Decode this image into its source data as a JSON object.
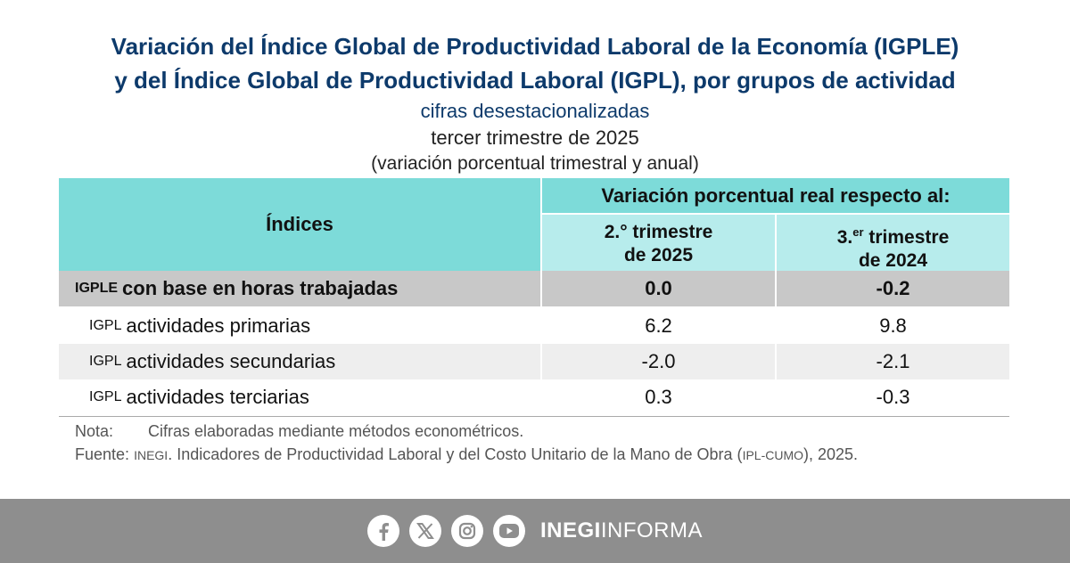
{
  "title": {
    "line1": "Variación del Índice Global de Productividad Laboral de la Economía (IGPLE)",
    "line2": "y del Índice Global de Productividad Laboral (IGPL), por grupos de actividad"
  },
  "subtitle": {
    "line1": "cifras desestacionalizadas",
    "line2": "tercer trimestre de 2025",
    "line3": "(variación porcentual trimestral y anual)"
  },
  "table": {
    "header_indices": "Índices",
    "header_group": "Variación porcentual real respecto al:",
    "col1": {
      "line1": "2.° trimestre",
      "line2": "de 2025"
    },
    "col2": {
      "prefix": "3.",
      "sup": "er",
      "suffix": " trimestre",
      "line2": "de 2024"
    },
    "rows": [
      {
        "abbr": "IGPLE",
        "label": "con base en horas trabajadas",
        "v1": "0.0",
        "v2": "-0.2"
      },
      {
        "abbr": "IGPL",
        "label": "actividades primarias",
        "v1": "6.2",
        "v2": "9.8"
      },
      {
        "abbr": "IGPL",
        "label": "actividades secundarias",
        "v1": "-2.0",
        "v2": "-2.1"
      },
      {
        "abbr": "IGPL",
        "label": "actividades terciarias",
        "v1": "0.3",
        "v2": "-0.3"
      }
    ]
  },
  "notes": {
    "nota_label": "Nota:",
    "nota_text": "Cifras elaboradas mediante métodos econométricos.",
    "fuente_label": "Fuente:",
    "fuente_org": "INEGI",
    "fuente_text1": ". Indicadores de Productividad Laboral y del Costo Unitario de la Mano de Obra (",
    "fuente_abbr": "IPL-CUMO",
    "fuente_text2": "), 2025."
  },
  "footer": {
    "icons": [
      "facebook-icon",
      "x-icon",
      "instagram-icon",
      "youtube-icon"
    ],
    "brand_bold": "INEGI",
    "brand_light": "INFORMA"
  },
  "colors": {
    "title": "#0d3a6b",
    "header_dark": "#7ddbd9",
    "header_light": "#b7ecec",
    "highlight_row": "#c8c8c8",
    "footer_bg": "#8e8e8e"
  }
}
